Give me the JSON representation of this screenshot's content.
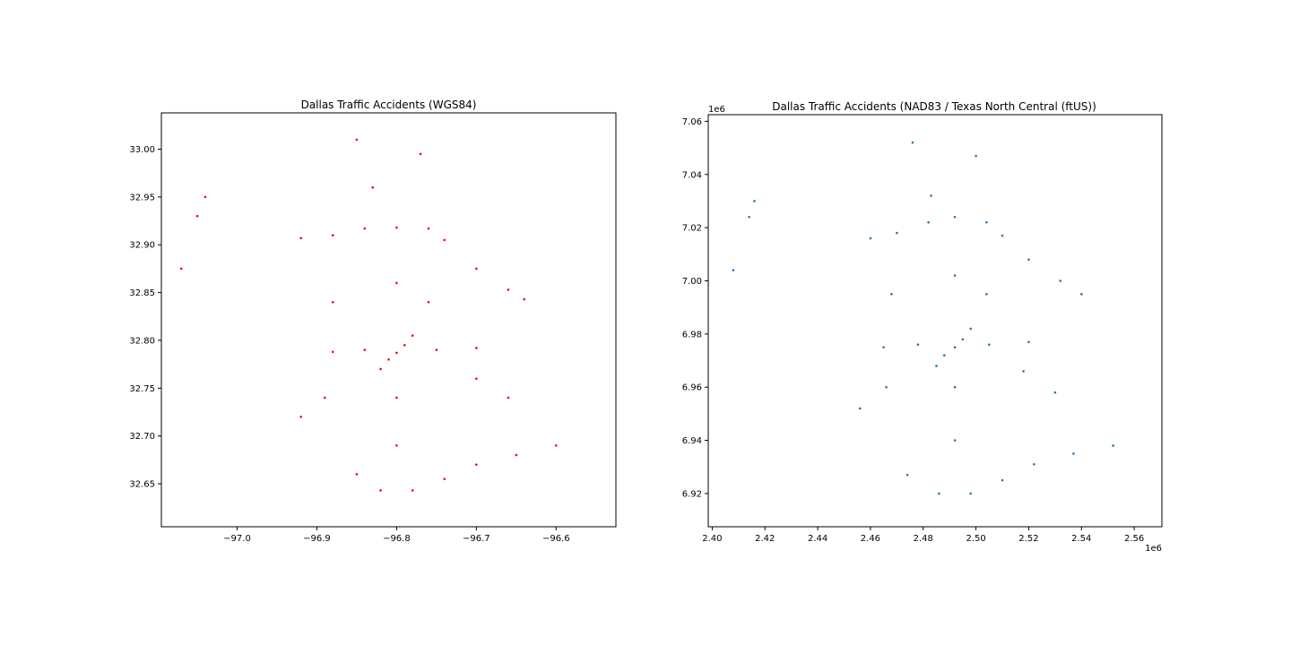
{
  "chart_data": [
    {
      "type": "scatter",
      "title": "Dallas Traffic Accidents (WGS84)",
      "xlabel": "",
      "ylabel": "",
      "xlim": [
        -97.095,
        -96.525
      ],
      "ylim": [
        32.605,
        33.038
      ],
      "x_ticks": [
        {
          "value": -97.0,
          "label": "−97.0"
        },
        {
          "value": -96.9,
          "label": "−96.9"
        },
        {
          "value": -96.8,
          "label": "−96.8"
        },
        {
          "value": -96.7,
          "label": "−96.7"
        },
        {
          "value": -96.6,
          "label": "−96.6"
        }
      ],
      "y_ticks": [
        {
          "value": 32.65,
          "label": "32.65"
        },
        {
          "value": 32.7,
          "label": "32.70"
        },
        {
          "value": 32.75,
          "label": "32.75"
        },
        {
          "value": 32.8,
          "label": "32.80"
        },
        {
          "value": 32.85,
          "label": "32.85"
        },
        {
          "value": 32.9,
          "label": "32.90"
        },
        {
          "value": 32.95,
          "label": "32.95"
        },
        {
          "value": 33.0,
          "label": "33.00"
        }
      ],
      "x_offset_label": "",
      "y_offset_label": "",
      "color": "#ff0000",
      "grid": false,
      "legend": "none",
      "points": [
        [
          -96.8,
          32.787
        ],
        [
          -96.79,
          32.795
        ],
        [
          -96.81,
          32.78
        ],
        [
          -96.78,
          32.805
        ],
        [
          -96.82,
          32.77
        ],
        [
          -96.92,
          32.907
        ],
        [
          -96.88,
          32.91
        ],
        [
          -96.84,
          32.917
        ],
        [
          -96.8,
          32.918
        ],
        [
          -96.76,
          32.917
        ],
        [
          -96.74,
          32.905
        ],
        [
          -96.7,
          32.875
        ],
        [
          -96.66,
          32.853
        ],
        [
          -96.64,
          32.843
        ],
        [
          -96.88,
          32.788
        ],
        [
          -96.84,
          32.79
        ],
        [
          -96.75,
          32.79
        ],
        [
          -96.7,
          32.792
        ],
        [
          -96.8,
          32.86
        ],
        [
          -96.8,
          32.74
        ],
        [
          -96.8,
          32.69
        ],
        [
          -96.82,
          32.643
        ],
        [
          -96.78,
          32.643
        ],
        [
          -96.74,
          32.655
        ],
        [
          -96.7,
          32.67
        ],
        [
          -96.65,
          32.68
        ],
        [
          -96.6,
          32.69
        ],
        [
          -96.85,
          32.66
        ],
        [
          -96.89,
          32.74
        ],
        [
          -96.92,
          32.72
        ],
        [
          -96.7,
          32.76
        ],
        [
          -96.66,
          32.74
        ],
        [
          -96.88,
          32.84
        ],
        [
          -96.76,
          32.84
        ],
        [
          -96.85,
          33.01
        ],
        [
          -96.83,
          32.96
        ],
        [
          -96.77,
          32.995
        ],
        [
          -97.04,
          32.95
        ],
        [
          -97.05,
          32.93
        ],
        [
          -97.07,
          32.875
        ]
      ]
    },
    {
      "type": "scatter",
      "title": "Dallas Traffic Accidents (NAD83 / Texas North Central (ftUS))",
      "xlabel": "",
      "ylabel": "",
      "xlim": [
        2.3985,
        2.5705
      ],
      "ylim": [
        6.9075,
        7.0625
      ],
      "x_ticks": [
        {
          "value": 2.4,
          "label": "2.40"
        },
        {
          "value": 2.42,
          "label": "2.42"
        },
        {
          "value": 2.44,
          "label": "2.44"
        },
        {
          "value": 2.46,
          "label": "2.46"
        },
        {
          "value": 2.48,
          "label": "2.48"
        },
        {
          "value": 2.5,
          "label": "2.50"
        },
        {
          "value": 2.52,
          "label": "2.52"
        },
        {
          "value": 2.54,
          "label": "2.54"
        },
        {
          "value": 2.56,
          "label": "2.56"
        }
      ],
      "y_ticks": [
        {
          "value": 6.92,
          "label": "6.92"
        },
        {
          "value": 6.94,
          "label": "6.94"
        },
        {
          "value": 6.96,
          "label": "6.96"
        },
        {
          "value": 6.98,
          "label": "6.98"
        },
        {
          "value": 7.0,
          "label": "7.00"
        },
        {
          "value": 7.02,
          "label": "7.02"
        },
        {
          "value": 7.04,
          "label": "7.04"
        },
        {
          "value": 7.06,
          "label": "7.06"
        }
      ],
      "x_offset_label": "1e6",
      "y_offset_label": "1e6",
      "color": "#1f77b4",
      "grid": false,
      "legend": "none",
      "points": [
        [
          2.492,
          6.975
        ],
        [
          2.495,
          6.978
        ],
        [
          2.488,
          6.972
        ],
        [
          2.498,
          6.982
        ],
        [
          2.485,
          6.968
        ],
        [
          2.46,
          7.016
        ],
        [
          2.47,
          7.018
        ],
        [
          2.482,
          7.022
        ],
        [
          2.492,
          7.024
        ],
        [
          2.504,
          7.022
        ],
        [
          2.51,
          7.017
        ],
        [
          2.52,
          7.008
        ],
        [
          2.532,
          7.0
        ],
        [
          2.54,
          6.995
        ],
        [
          2.465,
          6.975
        ],
        [
          2.478,
          6.976
        ],
        [
          2.505,
          6.976
        ],
        [
          2.52,
          6.977
        ],
        [
          2.492,
          7.002
        ],
        [
          2.492,
          6.96
        ],
        [
          2.492,
          6.94
        ],
        [
          2.486,
          6.92
        ],
        [
          2.498,
          6.92
        ],
        [
          2.51,
          6.925
        ],
        [
          2.522,
          6.931
        ],
        [
          2.537,
          6.935
        ],
        [
          2.552,
          6.938
        ],
        [
          2.474,
          6.927
        ],
        [
          2.466,
          6.96
        ],
        [
          2.456,
          6.952
        ],
        [
          2.518,
          6.966
        ],
        [
          2.53,
          6.958
        ],
        [
          2.468,
          6.995
        ],
        [
          2.504,
          6.995
        ],
        [
          2.476,
          7.052
        ],
        [
          2.483,
          7.032
        ],
        [
          2.5,
          7.047
        ],
        [
          2.416,
          7.03
        ],
        [
          2.414,
          7.024
        ],
        [
          2.408,
          7.004
        ]
      ]
    }
  ]
}
